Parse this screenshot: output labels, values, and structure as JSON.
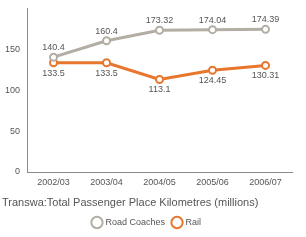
{
  "chart_data": {
    "type": "line",
    "title": "Transwa:Total Passenger Place Kilometres (millions)",
    "categories": [
      "2002/03",
      "2003/04",
      "2004/05",
      "2005/06",
      "2006/07"
    ],
    "series": [
      {
        "name": "Road Coaches",
        "color": "#b3ada3",
        "values": [
          140.4,
          160.4,
          173.32,
          174.04,
          174.39
        ]
      },
      {
        "name": "Rail",
        "color": "#e8762d",
        "values": [
          133.5,
          133.5,
          113.1,
          124.45,
          130.31
        ]
      }
    ],
    "ylim": [
      0,
      200
    ],
    "yticks": [
      0,
      50,
      100,
      150
    ],
    "grid": false,
    "legend": "bottom",
    "data_labels": true,
    "marker": "circle"
  }
}
